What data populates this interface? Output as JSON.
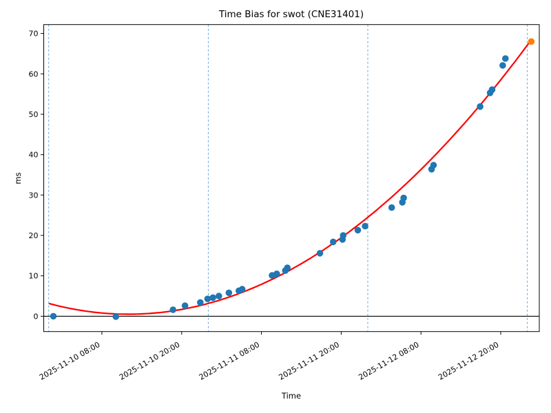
{
  "figure": {
    "background": "#ffffff"
  },
  "chart_data": {
    "type": "scatter",
    "title": "Time Bias for swot (CNE31401)",
    "xlabel": "Time",
    "ylabel": "ms",
    "x_unit": "hours since 2025-11-10 00:00",
    "xlim": [
      -0.75,
      73.8
    ],
    "ylim": [
      -3.8,
      72.2
    ],
    "grid": false,
    "legend": "none",
    "x_ticks": [
      {
        "h": 8,
        "label": "2025-11-10 08:00"
      },
      {
        "h": 20,
        "label": "2025-11-10 20:00"
      },
      {
        "h": 32,
        "label": "2025-11-11 08:00"
      },
      {
        "h": 44,
        "label": "2025-11-11 20:00"
      },
      {
        "h": 56,
        "label": "2025-11-12 08:00"
      },
      {
        "h": 68,
        "label": "2025-11-12 20:00"
      }
    ],
    "y_ticks": [
      0,
      10,
      20,
      30,
      40,
      50,
      60,
      70
    ],
    "day_boundaries_h": [
      0,
      24,
      48,
      72
    ],
    "zero_line": 0,
    "series": [
      {
        "name": "scatter",
        "marker": "circle",
        "color": "#1f77b4",
        "points": [
          [
            0.7,
            0.0
          ],
          [
            10.1,
            -0.1
          ],
          [
            18.7,
            1.6
          ],
          [
            20.5,
            2.6
          ],
          [
            22.8,
            3.4
          ],
          [
            23.9,
            4.3
          ],
          [
            24.7,
            4.6
          ],
          [
            25.6,
            5.0
          ],
          [
            27.1,
            5.8
          ],
          [
            28.6,
            6.3
          ],
          [
            29.1,
            6.7
          ],
          [
            33.6,
            10.1
          ],
          [
            34.3,
            10.5
          ],
          [
            35.6,
            11.3
          ],
          [
            35.9,
            12.0
          ],
          [
            40.8,
            15.6
          ],
          [
            42.8,
            18.4
          ],
          [
            44.2,
            19.0
          ],
          [
            44.3,
            20.0
          ],
          [
            46.5,
            21.3
          ],
          [
            47.6,
            22.3
          ],
          [
            51.6,
            26.9
          ],
          [
            53.2,
            28.2
          ],
          [
            53.4,
            29.3
          ],
          [
            57.6,
            36.4
          ],
          [
            57.9,
            37.4
          ],
          [
            64.9,
            51.9
          ],
          [
            66.4,
            55.3
          ],
          [
            66.7,
            56.1
          ],
          [
            68.3,
            62.1
          ],
          [
            68.7,
            63.8
          ]
        ]
      },
      {
        "name": "latest",
        "marker": "circle",
        "color": "#ff7f0e",
        "points": [
          [
            72.6,
            68.0
          ]
        ]
      }
    ],
    "fit": {
      "type": "quadratic",
      "color": "#ff0000",
      "a": 0.0185,
      "b": -0.444,
      "c": 3.164,
      "domain_h": [
        0.1,
        72.5
      ]
    },
    "colors": {
      "scatter": "#1f77b4",
      "latest": "#ff7f0e",
      "fit": "#ff0000",
      "day_line": "#5b9bd5",
      "axis": "#000000"
    }
  }
}
